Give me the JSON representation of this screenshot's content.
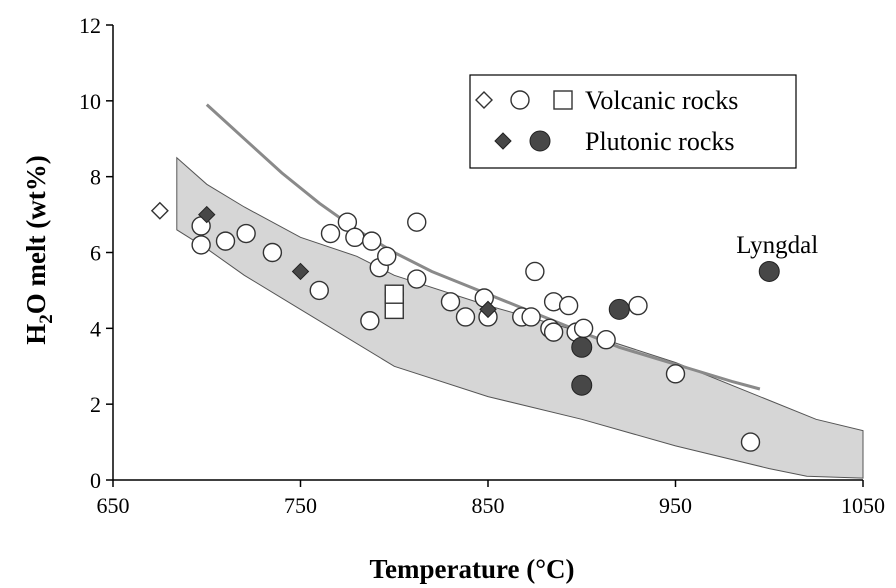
{
  "chart_data": {
    "type": "scatter",
    "title": "",
    "xlabel": "Temperature (°C)",
    "ylabel": "H2O melt (wt%)",
    "ylabel_parts": {
      "base": "H",
      "sub": "2",
      "rest": "O melt  (wt%)"
    },
    "xlim": [
      650,
      1050
    ],
    "ylim": [
      0,
      12
    ],
    "xticks": [
      "650",
      "750",
      "850",
      "950",
      "1050"
    ],
    "yticks": [
      "0",
      "2",
      "4",
      "6",
      "8",
      "10",
      "12"
    ],
    "grid": false,
    "legend_position": "top-right",
    "legend": [
      {
        "label": "Volcanic rocks",
        "markers": [
          "open-diamond",
          "open-circle",
          "open-square"
        ]
      },
      {
        "label": "Plutonic rocks",
        "markers": [
          "filled-diamond",
          "filled-circle"
        ]
      }
    ],
    "series": [
      {
        "name": "Volcanic rocks",
        "marker": "open-diamond",
        "points": [
          [
            675,
            7.1
          ]
        ]
      },
      {
        "name": "Volcanic rocks",
        "marker": "open-circle",
        "points": [
          [
            697,
            6.2
          ],
          [
            697,
            6.7
          ],
          [
            710,
            6.3
          ],
          [
            721,
            6.5
          ],
          [
            735,
            6.0
          ],
          [
            760,
            5.0
          ],
          [
            766,
            6.5
          ],
          [
            775,
            6.8
          ],
          [
            779,
            6.4
          ],
          [
            787,
            4.2
          ],
          [
            788,
            6.3
          ],
          [
            792,
            5.6
          ],
          [
            796,
            5.9
          ],
          [
            800,
            4.9
          ],
          [
            812,
            6.8
          ],
          [
            812,
            5.3
          ],
          [
            830,
            4.7
          ],
          [
            838,
            4.3
          ],
          [
            848,
            4.8
          ],
          [
            850,
            4.3
          ],
          [
            868,
            4.3
          ],
          [
            873,
            4.3
          ],
          [
            875,
            5.5
          ],
          [
            883,
            4.0
          ],
          [
            885,
            3.9
          ],
          [
            885,
            4.7
          ],
          [
            893,
            4.6
          ],
          [
            897,
            3.9
          ],
          [
            901,
            4.0
          ],
          [
            913,
            3.7
          ],
          [
            930,
            4.6
          ],
          [
            950,
            2.8
          ],
          [
            990,
            1.0
          ]
        ]
      },
      {
        "name": "Volcanic rocks",
        "marker": "open-square",
        "points": [
          [
            800,
            4.5
          ],
          [
            800,
            4.9
          ]
        ]
      },
      {
        "name": "Plutonic rocks",
        "marker": "filled-diamond",
        "points": [
          [
            700,
            7.0
          ],
          [
            750,
            5.5
          ],
          [
            850,
            4.5
          ]
        ]
      },
      {
        "name": "Plutonic rocks",
        "marker": "filled-circle",
        "points": [
          [
            900,
            3.5
          ],
          [
            900,
            2.5
          ],
          [
            920,
            4.5
          ],
          [
            1000,
            5.5
          ]
        ]
      }
    ],
    "curve": [
      [
        700,
        9.9
      ],
      [
        720,
        9.0
      ],
      [
        740,
        8.1
      ],
      [
        760,
        7.3
      ],
      [
        780,
        6.6
      ],
      [
        800,
        6.0
      ],
      [
        820,
        5.5
      ],
      [
        840,
        5.1
      ],
      [
        860,
        4.7
      ],
      [
        880,
        4.3
      ],
      [
        900,
        3.9
      ],
      [
        920,
        3.5
      ],
      [
        940,
        3.2
      ],
      [
        960,
        2.9
      ],
      [
        980,
        2.6
      ],
      [
        995,
        2.4
      ]
    ],
    "band_upper": [
      [
        684,
        8.5
      ],
      [
        700,
        7.8
      ],
      [
        720,
        7.2
      ],
      [
        750,
        6.4
      ],
      [
        780,
        5.9
      ],
      [
        800,
        5.4
      ],
      [
        850,
        4.6
      ],
      [
        900,
        3.9
      ],
      [
        950,
        3.1
      ],
      [
        1000,
        2.1
      ],
      [
        1025,
        1.6
      ],
      [
        1050,
        1.3
      ]
    ],
    "band_lower": [
      [
        1050,
        0.05
      ],
      [
        1020,
        0.1
      ],
      [
        1000,
        0.3
      ],
      [
        950,
        0.9
      ],
      [
        900,
        1.6
      ],
      [
        850,
        2.2
      ],
      [
        800,
        3.0
      ],
      [
        750,
        4.5
      ],
      [
        720,
        5.4
      ],
      [
        700,
        6.1
      ],
      [
        684,
        6.6
      ]
    ],
    "annotations": [
      {
        "text": "Lyngdal",
        "x": 1000,
        "y": 6.2
      }
    ]
  }
}
